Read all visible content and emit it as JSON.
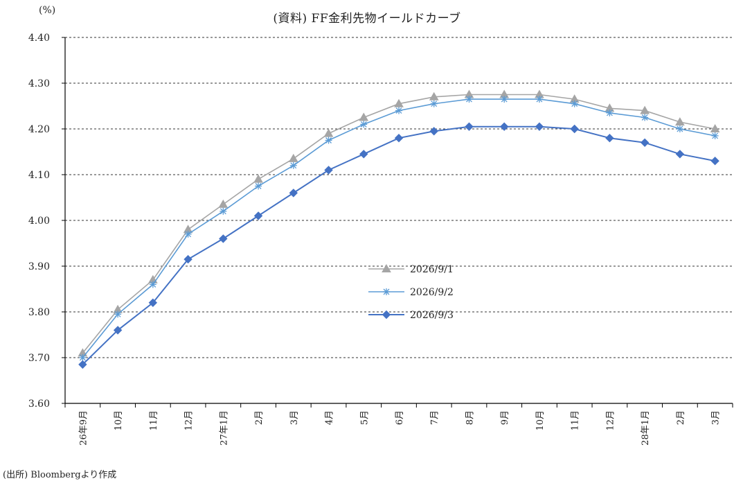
{
  "header": {
    "unit": "(%)",
    "title": "(資料) FF金利先物イールドカーブ"
  },
  "footer": {
    "source": "(出所) Bloombergより作成"
  },
  "chart_data": {
    "type": "line",
    "title": "(資料) FF金利先物イールドカーブ",
    "ylabel": "(%)",
    "ylim": [
      3.6,
      4.4
    ],
    "yticks": [
      "3.60",
      "3.70",
      "3.80",
      "3.90",
      "4.00",
      "4.10",
      "4.20",
      "4.30",
      "4.40"
    ],
    "categories": [
      "26年9月",
      "10月",
      "11月",
      "12月",
      "27年1月",
      "2月",
      "3月",
      "4月",
      "5月",
      "6月",
      "7月",
      "8月",
      "9月",
      "10月",
      "11月",
      "12月",
      "28年1月",
      "2月",
      "3月"
    ],
    "grid": true,
    "legend_position": "center",
    "series": [
      {
        "name": "2026/9/1",
        "color": "#a5a5a5",
        "marker": "triangle",
        "values": [
          3.71,
          3.805,
          3.87,
          3.98,
          4.035,
          4.09,
          4.135,
          4.19,
          4.225,
          4.255,
          4.27,
          4.275,
          4.275,
          4.275,
          4.265,
          4.245,
          4.24,
          4.215,
          4.2
        ]
      },
      {
        "name": "2026/9/2",
        "color": "#5b9bd5",
        "marker": "asterisk",
        "values": [
          3.7,
          3.795,
          3.86,
          3.97,
          4.02,
          4.075,
          4.12,
          4.175,
          4.21,
          4.24,
          4.255,
          4.265,
          4.265,
          4.265,
          4.255,
          4.235,
          4.225,
          4.2,
          4.185
        ]
      },
      {
        "name": "2026/9/3",
        "color": "#4472c4",
        "marker": "diamond",
        "values": [
          3.685,
          3.76,
          3.82,
          3.915,
          3.96,
          4.01,
          4.06,
          4.11,
          4.145,
          4.18,
          4.195,
          4.205,
          4.205,
          4.205,
          4.2,
          4.18,
          4.17,
          4.145,
          4.13
        ]
      }
    ]
  }
}
